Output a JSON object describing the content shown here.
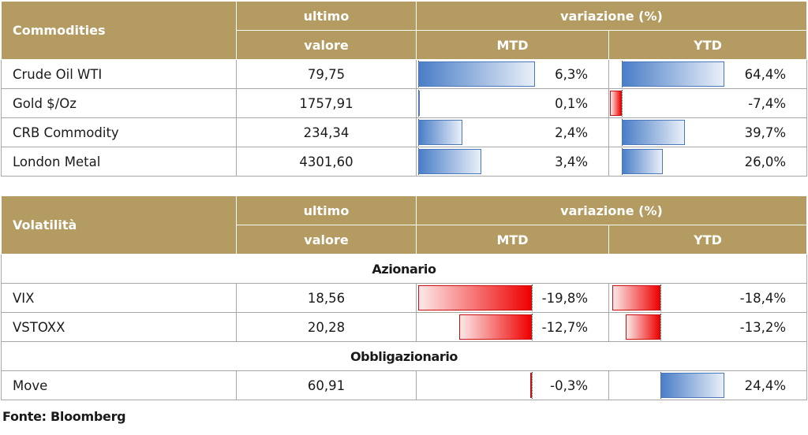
{
  "colors": {
    "header_bg": "#b49b62",
    "positive_bar": "#4a7ec7",
    "negative_bar": "#ee0000"
  },
  "commodities": {
    "header": {
      "name": "Commodities",
      "col_last_1": "ultimo",
      "col_last_2": "valore",
      "col_change": "variazione (%)",
      "col_mtd": "MTD",
      "col_ytd": "YTD"
    },
    "rows": [
      {
        "label": "Crude Oil WTI",
        "value": "79,75",
        "mtd": "6,3%",
        "mtd_num": 6.3,
        "ytd": "64,4%",
        "ytd_num": 64.4
      },
      {
        "label": "Gold $/Oz",
        "value": "1757,91",
        "mtd": "0,1%",
        "mtd_num": 0.1,
        "ytd": "-7,4%",
        "ytd_num": -7.4
      },
      {
        "label": "CRB Commodity",
        "value": "234,34",
        "mtd": "2,4%",
        "mtd_num": 2.4,
        "ytd": "39,7%",
        "ytd_num": 39.7
      },
      {
        "label": "London Metal",
        "value": "4301,60",
        "mtd": "3,4%",
        "mtd_num": 3.4,
        "ytd": "26,0%",
        "ytd_num": 26.0
      }
    ]
  },
  "volatility": {
    "header": {
      "name": "Volatilità",
      "col_last_1": "ultimo",
      "col_last_2": "valore",
      "col_change": "variazione (%)",
      "col_mtd": "MTD",
      "col_ytd": "YTD"
    },
    "sections": [
      {
        "title": "Azionario",
        "rows": [
          {
            "label": "VIX",
            "value": "18,56",
            "mtd": "-19,8%",
            "mtd_num": -19.8,
            "ytd": "-18,4%",
            "ytd_num": -18.4
          },
          {
            "label": "VSTOXX",
            "value": "20,28",
            "mtd": "-12,7%",
            "mtd_num": -12.7,
            "ytd": "-13,2%",
            "ytd_num": -13.2
          }
        ]
      },
      {
        "title": "Obbligazionario",
        "rows": [
          {
            "label": "Move",
            "value": "60,91",
            "mtd": "-0,3%",
            "mtd_num": -0.3,
            "ytd": "24,4%",
            "ytd_num": 24.4
          }
        ]
      }
    ]
  },
  "source": "Fonte: Bloomberg"
}
